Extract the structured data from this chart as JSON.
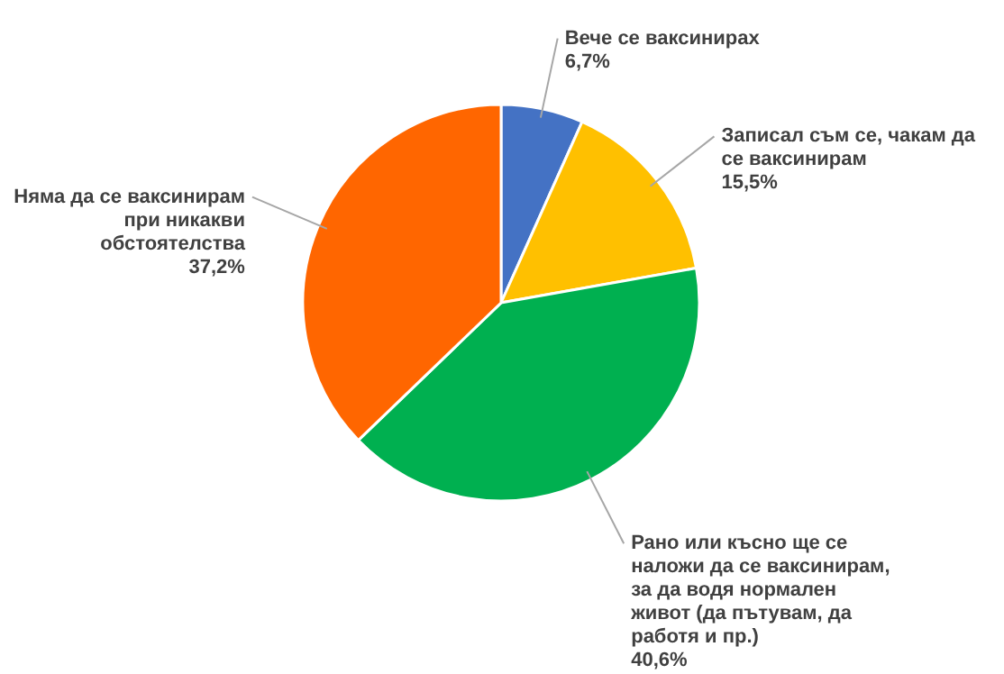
{
  "chart_data": {
    "type": "pie",
    "categories": [
      "Вече се ваксинирах",
      "Записал съм се, чакам да се ваксинирам",
      "Рано или късно ще се наложи да се ваксинирам, за да водя нормален живот  (да пътувам, да работя и пр.)",
      "Няма да се ваксинирам при никакви обстоятелства"
    ],
    "values": [
      6.7,
      15.5,
      40.6,
      37.2
    ],
    "value_labels": [
      "6,7%",
      "15,5%",
      "40,6%",
      "37,2%"
    ],
    "colors": [
      "#4472c4",
      "#ffc000",
      "#00b050",
      "#ff6600"
    ]
  }
}
